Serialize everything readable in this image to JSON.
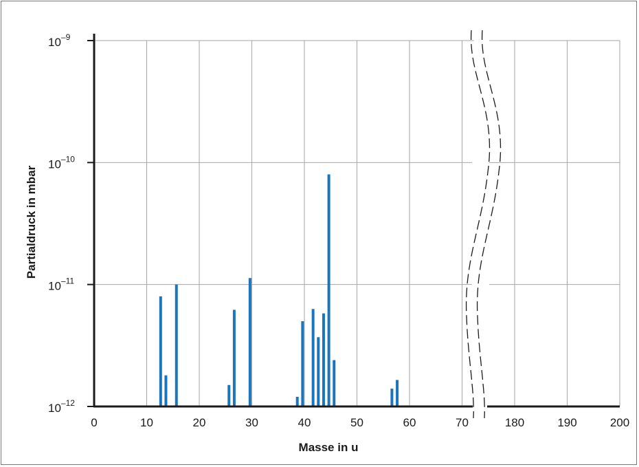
{
  "chart_data": {
    "type": "bar",
    "xlabel": "Masse in u",
    "ylabel": "Partialdruck in mbar",
    "y_scale": "log",
    "ylim": [
      1e-12,
      1e-09
    ],
    "y_ticks": [
      {
        "value": 1e-12,
        "base": "10",
        "exp": "–12"
      },
      {
        "value": 1e-11,
        "base": "10",
        "exp": "–11"
      },
      {
        "value": 1e-10,
        "base": "10",
        "exp": "–10"
      },
      {
        "value": 1e-09,
        "base": "10",
        "exp": "–9"
      }
    ],
    "x_ticks": [
      "0",
      "10",
      "20",
      "30",
      "40",
      "50",
      "60",
      "70",
      "180",
      "190",
      "200"
    ],
    "x_axis_break": "between 70 and 180",
    "grid": true,
    "bar_color": "#1a75bc",
    "bars": [
      {
        "x": 12,
        "value": 8e-12
      },
      {
        "x": 13,
        "value": 1.8e-12
      },
      {
        "x": 15,
        "value": 1e-11
      },
      {
        "x": 25,
        "value": 1.5e-12
      },
      {
        "x": 26,
        "value": 6.2e-12
      },
      {
        "x": 29,
        "value": 1.13e-11
      },
      {
        "x": 38,
        "value": 1.2e-12
      },
      {
        "x": 39,
        "value": 5e-12
      },
      {
        "x": 41,
        "value": 6.3e-12
      },
      {
        "x": 42,
        "value": 3.7e-12
      },
      {
        "x": 43,
        "value": 5.8e-12
      },
      {
        "x": 44,
        "value": 8e-11
      },
      {
        "x": 45,
        "value": 2.4e-12
      },
      {
        "x": 56,
        "value": 1.4e-12
      },
      {
        "x": 57,
        "value": 1.65e-12
      }
    ]
  }
}
